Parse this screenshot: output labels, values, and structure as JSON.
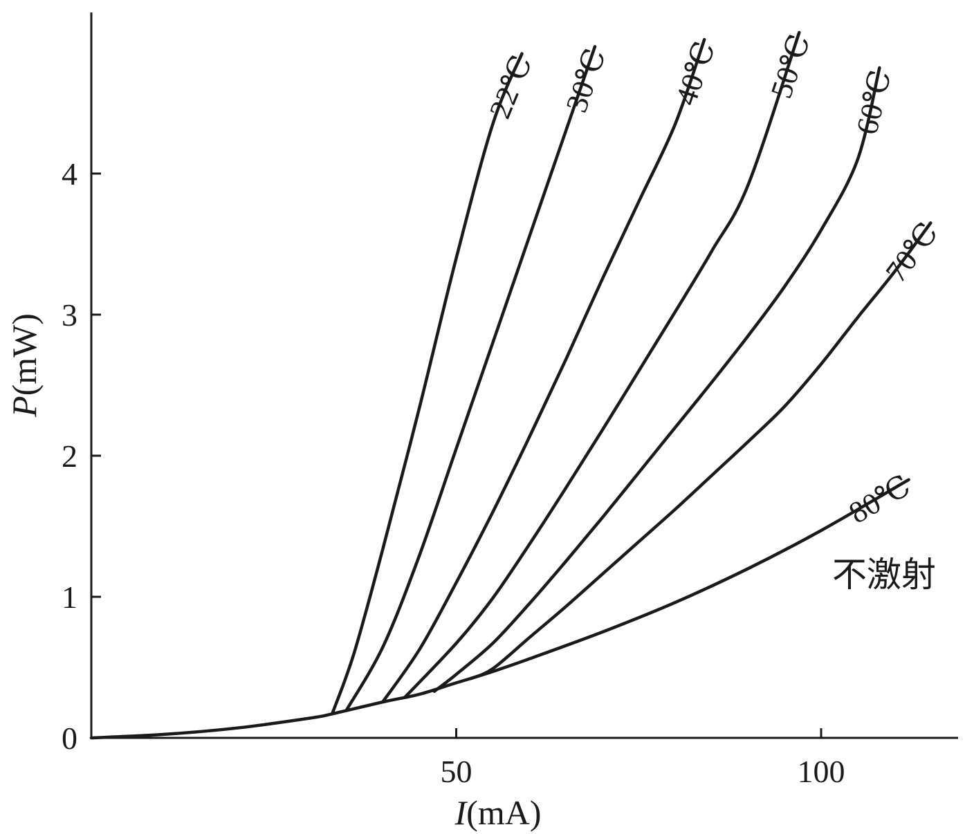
{
  "chart_data": {
    "type": "line",
    "title": "",
    "xlabel": {
      "var": "I",
      "unit": "(mA)"
    },
    "ylabel": {
      "var": "P",
      "unit": "(mW)"
    },
    "xlim": [
      0,
      119
    ],
    "ylim": [
      0,
      5.15
    ],
    "x_ticks": [
      50,
      100
    ],
    "y_ticks": [
      0,
      1,
      2,
      3,
      4
    ],
    "grid": false,
    "legend": "labels at curve ends",
    "spontaneous": {
      "label": "不激射",
      "points": [
        [
          0,
          0
        ],
        [
          10,
          0.025
        ],
        [
          20,
          0.07
        ],
        [
          30,
          0.14
        ],
        [
          33,
          0.17
        ],
        [
          40,
          0.255
        ],
        [
          45,
          0.31
        ],
        [
          50,
          0.39
        ],
        [
          55,
          0.47
        ],
        [
          60,
          0.56
        ],
        [
          70,
          0.75
        ],
        [
          80,
          0.96
        ],
        [
          90,
          1.2
        ],
        [
          100,
          1.47
        ],
        [
          112,
          1.83
        ]
      ]
    },
    "series": [
      {
        "name": "22℃",
        "threshold": 33,
        "points": [
          [
            33,
            0.17
          ],
          [
            36,
            0.6
          ],
          [
            40,
            1.35
          ],
          [
            45,
            2.35
          ],
          [
            50,
            3.4
          ],
          [
            55,
            4.35
          ],
          [
            59,
            4.85
          ]
        ]
      },
      {
        "name": "30℃",
        "threshold": 35,
        "points": [
          [
            35,
            0.2
          ],
          [
            40,
            0.65
          ],
          [
            45,
            1.3
          ],
          [
            50,
            2.05
          ],
          [
            55,
            2.8
          ],
          [
            60,
            3.55
          ],
          [
            65,
            4.3
          ],
          [
            69,
            4.9
          ]
        ]
      },
      {
        "name": "40℃",
        "threshold": 40,
        "points": [
          [
            40,
            0.26
          ],
          [
            45,
            0.63
          ],
          [
            50,
            1.1
          ],
          [
            55,
            1.6
          ],
          [
            60,
            2.13
          ],
          [
            65,
            2.68
          ],
          [
            70,
            3.25
          ],
          [
            75,
            3.8
          ],
          [
            80,
            4.35
          ],
          [
            84,
            4.95
          ]
        ]
      },
      {
        "name": "50℃",
        "threshold": 43,
        "points": [
          [
            43,
            0.29
          ],
          [
            50,
            0.67
          ],
          [
            55,
            0.99
          ],
          [
            60,
            1.37
          ],
          [
            65,
            1.77
          ],
          [
            70,
            2.18
          ],
          [
            75,
            2.6
          ],
          [
            80,
            3.02
          ],
          [
            85,
            3.45
          ],
          [
            90,
            3.92
          ],
          [
            97,
            5.0
          ]
        ]
      },
      {
        "name": "60℃",
        "threshold": 47,
        "points": [
          [
            47,
            0.33
          ],
          [
            50,
            0.45
          ],
          [
            55,
            0.67
          ],
          [
            60,
            0.95
          ],
          [
            65,
            1.25
          ],
          [
            70,
            1.56
          ],
          [
            75,
            1.88
          ],
          [
            80,
            2.2
          ],
          [
            85,
            2.52
          ],
          [
            90,
            2.85
          ],
          [
            95,
            3.2
          ],
          [
            100,
            3.6
          ],
          [
            105,
            4.1
          ],
          [
            108,
            4.75
          ]
        ]
      },
      {
        "name": "70℃",
        "threshold": 52,
        "points": [
          [
            52,
            0.42
          ],
          [
            55,
            0.49
          ],
          [
            60,
            0.71
          ],
          [
            65,
            0.93
          ],
          [
            70,
            1.16
          ],
          [
            75,
            1.39
          ],
          [
            80,
            1.62
          ],
          [
            85,
            1.86
          ],
          [
            90,
            2.1
          ],
          [
            95,
            2.35
          ],
          [
            100,
            2.65
          ],
          [
            105,
            2.98
          ],
          [
            110,
            3.3
          ],
          [
            115,
            3.65
          ]
        ]
      },
      {
        "name": "80℃",
        "threshold": 0,
        "points": []
      }
    ]
  }
}
